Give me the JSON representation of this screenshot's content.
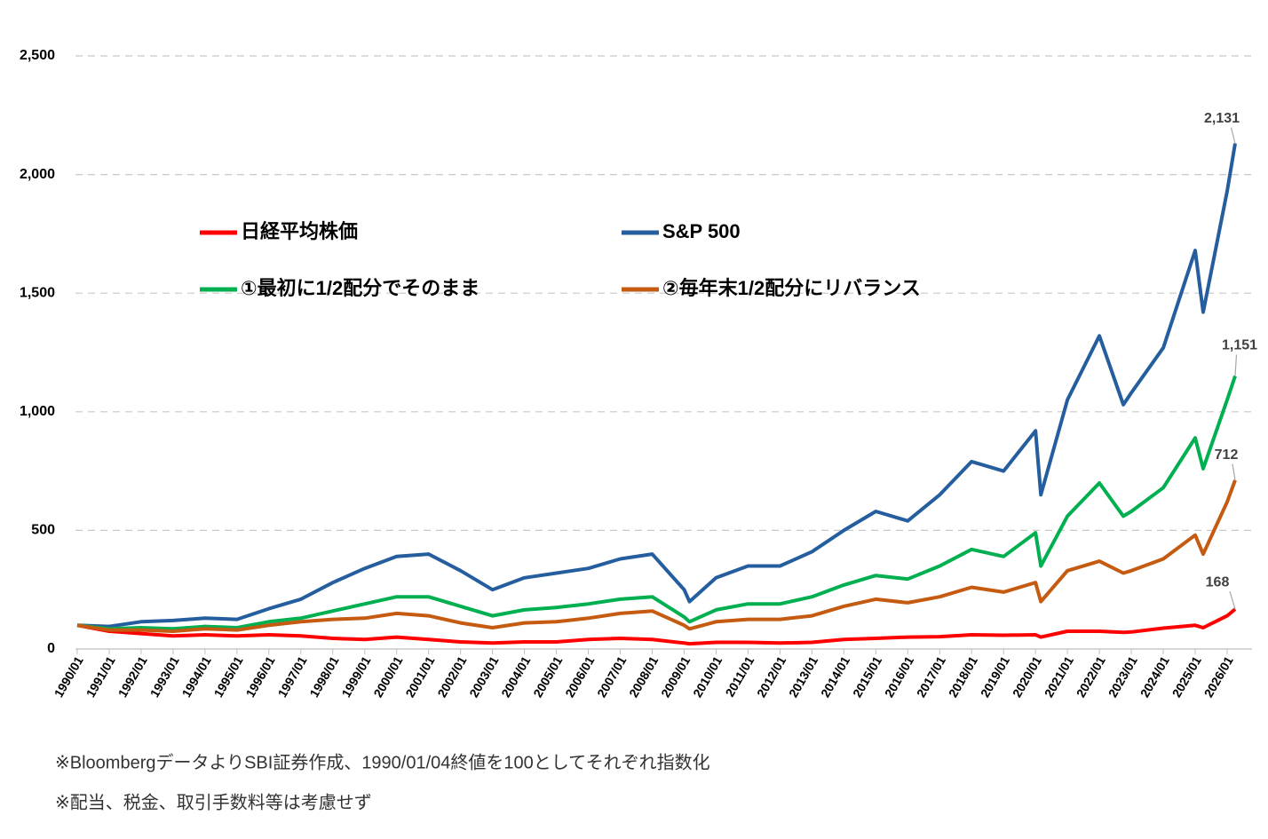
{
  "chart_data": {
    "type": "line",
    "x": [
      "1990/01",
      "1991/01",
      "1992/01",
      "1993/01",
      "1994/01",
      "1995/01",
      "1996/01",
      "1997/01",
      "1998/01",
      "1999/01",
      "2000/01",
      "2001/01",
      "2002/01",
      "2003/01",
      "2004/01",
      "2005/01",
      "2006/01",
      "2007/01",
      "2008/01",
      "2009/01",
      "2009/03",
      "2010/01",
      "2011/01",
      "2012/01",
      "2013/01",
      "2014/01",
      "2015/01",
      "2016/01",
      "2017/01",
      "2018/01",
      "2019/01",
      "2020/01",
      "2020/03",
      "2021/01",
      "2022/01",
      "2022/10",
      "2023/01",
      "2024/01",
      "2025/01",
      "2025/04",
      "2026/01",
      "2026/04"
    ],
    "series": [
      {
        "name": "日経平均株価",
        "color": "#ff0000",
        "values": [
          100,
          75,
          65,
          55,
          60,
          55,
          60,
          55,
          45,
          40,
          50,
          40,
          30,
          25,
          30,
          30,
          40,
          45,
          40,
          25,
          22,
          28,
          28,
          25,
          28,
          40,
          45,
          50,
          52,
          60,
          58,
          60,
          50,
          75,
          75,
          70,
          72,
          88,
          100,
          90,
          140,
          168
        ],
        "value_labels": [
          null,
          null,
          null,
          null,
          null,
          null,
          null,
          null,
          null,
          null,
          null,
          null,
          null,
          null,
          null,
          null,
          null,
          null,
          null,
          null,
          null,
          null,
          null,
          null,
          null,
          null,
          null,
          null,
          null,
          null,
          null,
          null,
          null,
          null,
          null,
          null,
          null,
          null,
          null,
          null,
          null,
          "168"
        ]
      },
      {
        "name": "S&P 500",
        "color": "#255e9e",
        "values": [
          100,
          95,
          115,
          120,
          130,
          125,
          170,
          210,
          280,
          340,
          390,
          400,
          330,
          250,
          300,
          320,
          340,
          380,
          400,
          250,
          200,
          300,
          350,
          350,
          410,
          500,
          580,
          540,
          650,
          790,
          750,
          920,
          650,
          1050,
          1320,
          1030,
          1080,
          1270,
          1680,
          1420,
          1930,
          2131
        ],
        "value_labels": [
          null,
          null,
          null,
          null,
          null,
          null,
          null,
          null,
          null,
          null,
          null,
          null,
          null,
          null,
          null,
          null,
          null,
          null,
          null,
          null,
          null,
          null,
          null,
          null,
          null,
          null,
          null,
          null,
          null,
          null,
          null,
          null,
          null,
          null,
          null,
          null,
          null,
          null,
          null,
          null,
          null,
          "2,131"
        ]
      },
      {
        "name": "①最初に1/2配分でそのまま",
        "color": "#00b050",
        "values": [
          100,
          85,
          90,
          85,
          95,
          90,
          115,
          130,
          160,
          190,
          220,
          220,
          180,
          140,
          165,
          175,
          190,
          210,
          220,
          135,
          115,
          165,
          190,
          190,
          220,
          270,
          310,
          295,
          350,
          420,
          390,
          490,
          350,
          560,
          700,
          560,
          580,
          680,
          890,
          760,
          1050,
          1151
        ],
        "value_labels": [
          null,
          null,
          null,
          null,
          null,
          null,
          null,
          null,
          null,
          null,
          null,
          null,
          null,
          null,
          null,
          null,
          null,
          null,
          null,
          null,
          null,
          null,
          null,
          null,
          null,
          null,
          null,
          null,
          null,
          null,
          null,
          null,
          null,
          null,
          null,
          null,
          null,
          null,
          null,
          null,
          null,
          "1,151"
        ]
      },
      {
        "name": "②毎年末1/2配分にリバランス",
        "color": "#c55a11",
        "values": [
          100,
          80,
          80,
          75,
          85,
          80,
          100,
          115,
          125,
          130,
          150,
          140,
          110,
          90,
          110,
          115,
          130,
          150,
          160,
          100,
          85,
          115,
          125,
          125,
          140,
          180,
          210,
          195,
          220,
          260,
          240,
          280,
          200,
          330,
          370,
          320,
          330,
          380,
          480,
          400,
          620,
          712
        ],
        "value_labels": [
          null,
          null,
          null,
          null,
          null,
          null,
          null,
          null,
          null,
          null,
          null,
          null,
          null,
          null,
          null,
          null,
          null,
          null,
          null,
          null,
          null,
          null,
          null,
          null,
          null,
          null,
          null,
          null,
          null,
          null,
          null,
          null,
          null,
          null,
          null,
          null,
          null,
          null,
          null,
          null,
          null,
          "712"
        ]
      }
    ],
    "xticks": [
      "1990/01",
      "1991/01",
      "1992/01",
      "1993/01",
      "1994/01",
      "1995/01",
      "1996/01",
      "1997/01",
      "1998/01",
      "1999/01",
      "2000/01",
      "2001/01",
      "2002/01",
      "2003/01",
      "2004/01",
      "2005/01",
      "2006/01",
      "2007/01",
      "2008/01",
      "2009/01",
      "2010/01",
      "2011/01",
      "2012/01",
      "2013/01",
      "2014/01",
      "2015/01",
      "2016/01",
      "2017/01",
      "2018/01",
      "2019/01",
      "2020/01",
      "2021/01",
      "2022/01",
      "2023/01",
      "2024/01",
      "2025/01",
      "2026/01"
    ],
    "ylim": [
      0,
      2500
    ],
    "yticks": [
      0,
      500,
      {
        "value": 1000,
        "label": "1,000"
      },
      {
        "value": 1500,
        "label": "1,500"
      },
      {
        "value": 2000,
        "label": "2,000"
      },
      {
        "value": 2500,
        "label": "2,500"
      }
    ],
    "grid": true,
    "notes": [
      "※BloombergデータよりSBI証券作成、1990/01/04終値を100としてそれぞれ指数化",
      "※配当、税金、取引手数料等は考慮せず"
    ]
  }
}
